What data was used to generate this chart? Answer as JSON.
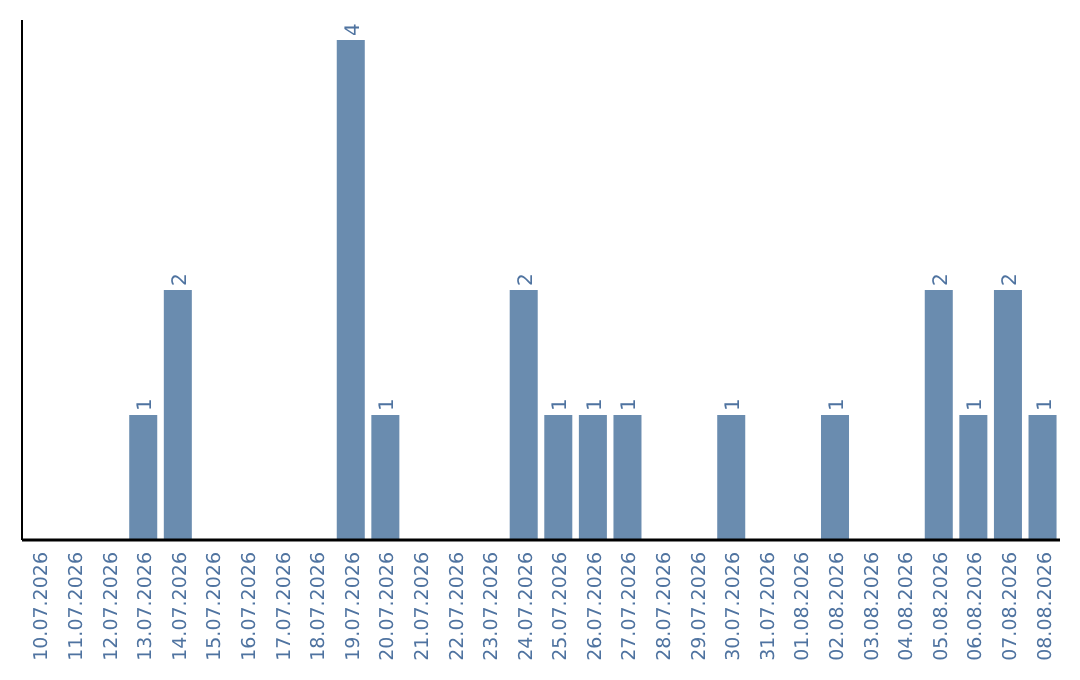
{
  "chart_data": {
    "type": "bar",
    "color": "#6a8caf",
    "categories": [
      "10.07.2026",
      "11.07.2026",
      "12.07.2026",
      "13.07.2026",
      "14.07.2026",
      "15.07.2026",
      "16.07.2026",
      "17.07.2026",
      "18.07.2026",
      "19.07.2026",
      "20.07.2026",
      "21.07.2026",
      "22.07.2026",
      "23.07.2026",
      "24.07.2026",
      "25.07.2026",
      "26.07.2026",
      "27.07.2026",
      "28.07.2026",
      "29.07.2026",
      "30.07.2026",
      "31.07.2026",
      "01.08.2026",
      "02.08.2026",
      "03.08.2026",
      "04.08.2026",
      "05.08.2026",
      "06.08.2026",
      "07.08.2026",
      "08.08.2026"
    ],
    "values": [
      0,
      0,
      0,
      1,
      2,
      0,
      0,
      0,
      0,
      4,
      1,
      0,
      0,
      0,
      2,
      1,
      1,
      1,
      0,
      0,
      1,
      0,
      0,
      1,
      0,
      0,
      2,
      1,
      2,
      1
    ],
    "value_labels": [
      null,
      null,
      null,
      "1",
      "2",
      null,
      null,
      null,
      null,
      "4",
      "1",
      null,
      null,
      null,
      "2",
      "1",
      "1",
      "1",
      null,
      null,
      "1",
      null,
      null,
      "1",
      null,
      null,
      "2",
      "1",
      "2",
      "1"
    ],
    "tick_labels": "x"
  }
}
